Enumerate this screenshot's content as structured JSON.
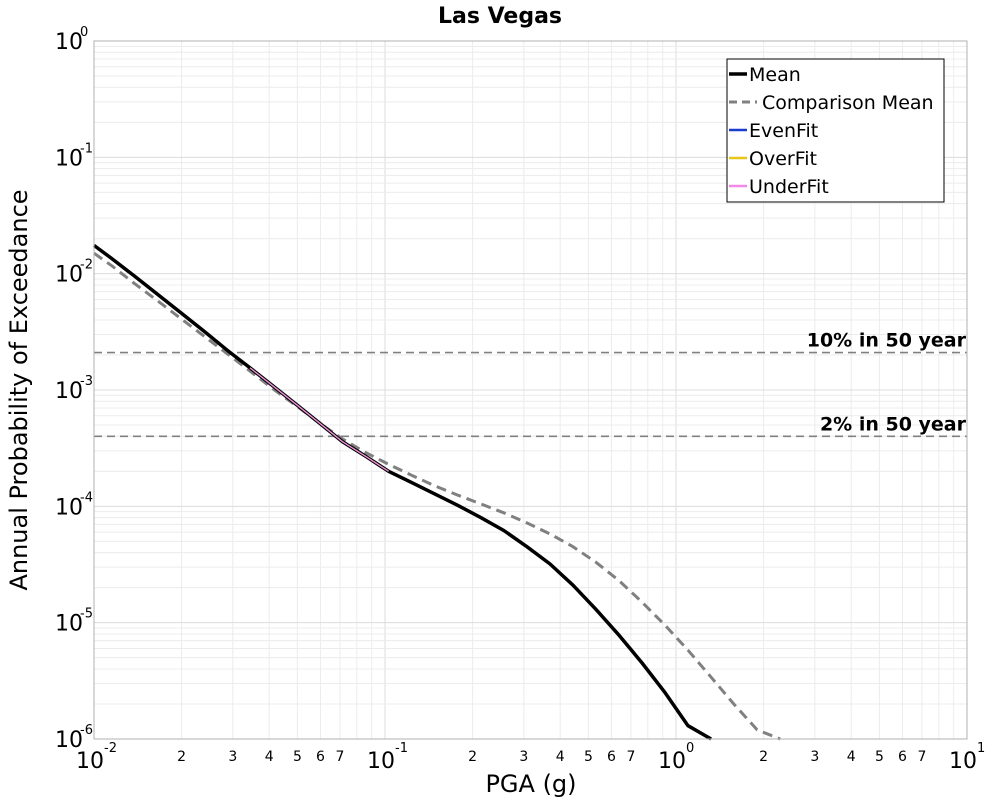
{
  "chart_data": {
    "type": "line",
    "title": "Las Vegas",
    "xlabel": "PGA (g)",
    "ylabel": "Annual Probability of Exceedance",
    "x_scale": "log",
    "y_scale": "log",
    "xlim": [
      0.01,
      10
    ],
    "ylim": [
      1e-06,
      1
    ],
    "grid": true,
    "legend_position": "top-right",
    "x_major_ticks": [
      {
        "base": "10",
        "exp": "-2"
      },
      {
        "base": "10",
        "exp": "-1"
      },
      {
        "base": "10",
        "exp": "0"
      },
      {
        "base": "10",
        "exp": "1"
      }
    ],
    "x_minor_tick_labels": [
      "2",
      "3",
      "4",
      "5",
      "6",
      "7"
    ],
    "y_major_ticks": [
      {
        "base": "10",
        "exp": "0"
      },
      {
        "base": "10",
        "exp": "-1"
      },
      {
        "base": "10",
        "exp": "-2"
      },
      {
        "base": "10",
        "exp": "-3"
      },
      {
        "base": "10",
        "exp": "-4"
      },
      {
        "base": "10",
        "exp": "-5"
      },
      {
        "base": "10",
        "exp": "-6"
      }
    ],
    "reference_lines": [
      {
        "label": "10% in 50 year",
        "y": 0.0021,
        "color": "#808080"
      },
      {
        "label": "2% in 50 year",
        "y": 0.0004,
        "color": "#808080"
      }
    ],
    "series": [
      {
        "name": "Mean",
        "color": "#000000",
        "style": "solid",
        "x": [
          0.01,
          0.0115,
          0.0138,
          0.0166,
          0.0199,
          0.0239,
          0.0287,
          0.0344,
          0.0413,
          0.0496,
          0.0595,
          0.0714,
          0.0857,
          0.1029,
          0.1235,
          0.1482,
          0.1778,
          0.2134,
          0.2561,
          0.3073,
          0.3688,
          0.4425,
          0.531,
          0.6372,
          0.7647,
          0.9176,
          1.1,
          1.32,
          1.58,
          1.95
        ],
        "y": [
          0.0175,
          0.0135,
          0.0095,
          0.0066,
          0.0046,
          0.0032,
          0.0022,
          0.00155,
          0.00108,
          0.00075,
          0.00052,
          0.00036,
          0.00027,
          0.0002,
          0.00016,
          0.000128,
          0.000102,
          8e-05,
          6.2e-05,
          4.5e-05,
          3.2e-05,
          2.1e-05,
          1.3e-05,
          7.8e-06,
          4.5e-06,
          2.5e-06,
          1.3e-06,
          1e-06,
          9.5e-07,
          9.2e-07
        ]
      },
      {
        "name": "Comparison Mean",
        "color": "#808080",
        "style": "dashed",
        "x": [
          0.01,
          0.0115,
          0.0138,
          0.0166,
          0.0199,
          0.0239,
          0.0287,
          0.0344,
          0.0413,
          0.0496,
          0.0595,
          0.0714,
          0.0857,
          0.1029,
          0.1235,
          0.1482,
          0.1778,
          0.2134,
          0.2561,
          0.3073,
          0.3688,
          0.4425,
          0.531,
          0.6372,
          0.7647,
          0.9176,
          1.1,
          1.32,
          1.58,
          1.9,
          2.28
        ],
        "y": [
          0.015,
          0.0117,
          0.0082,
          0.0058,
          0.0041,
          0.0029,
          0.00205,
          0.00145,
          0.00102,
          0.00073,
          0.00052,
          0.00038,
          0.00029,
          0.00023,
          0.000185,
          0.00015,
          0.000125,
          0.000105,
          8.8e-05,
          7.2e-05,
          5.8e-05,
          4.5e-05,
          3.3e-05,
          2.3e-05,
          1.5e-05,
          9.5e-06,
          5.8e-06,
          3.4e-06,
          2e-06,
          1.2e-06,
          1e-06
        ]
      },
      {
        "name": "EvenFit",
        "color": "#1a3ccf",
        "style": "solid",
        "x": [
          0.0344,
          0.0413,
          0.0496,
          0.0595,
          0.0714,
          0.0857,
          0.1029
        ],
        "y": [
          0.00155,
          0.00108,
          0.00075,
          0.00052,
          0.00036,
          0.00027,
          0.0002
        ]
      },
      {
        "name": "OverFit",
        "color": "#e6c619",
        "style": "solid",
        "x": [
          0.0344,
          0.0413,
          0.0496,
          0.0595,
          0.0714,
          0.0857,
          0.1029
        ],
        "y": [
          0.00155,
          0.00108,
          0.00075,
          0.00052,
          0.00036,
          0.00027,
          0.0002
        ]
      },
      {
        "name": "UnderFit",
        "color": "#f08ae6",
        "style": "solid",
        "x": [
          0.0344,
          0.0413,
          0.0496,
          0.0595,
          0.0714,
          0.0857,
          0.1029
        ],
        "y": [
          0.00155,
          0.00108,
          0.00075,
          0.00052,
          0.00036,
          0.00027,
          0.0002
        ]
      }
    ]
  }
}
